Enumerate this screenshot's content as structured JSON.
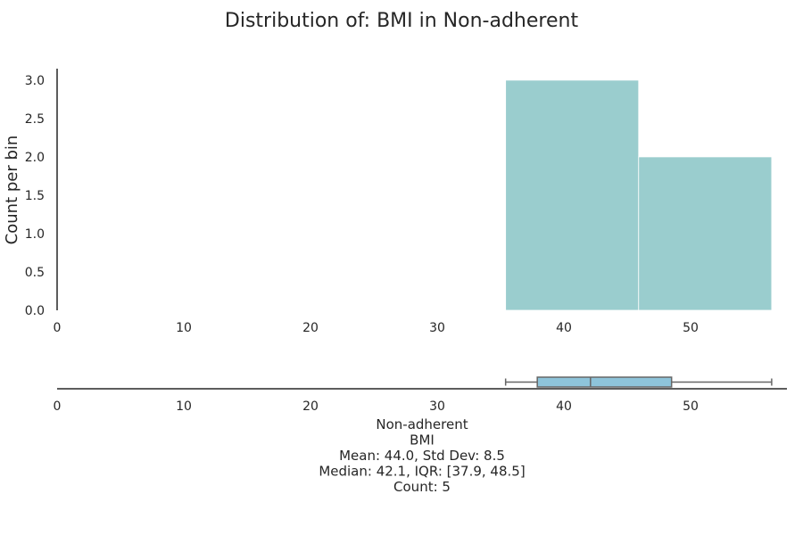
{
  "chart_data": {
    "type": "bar",
    "title": "Distribution of: BMI in Non-adherent",
    "ylabel": "Count per bin",
    "xlabel": "",
    "xlim": [
      0,
      57
    ],
    "ylim": [
      0,
      3.15
    ],
    "x_ticks": [
      "0",
      "10",
      "20",
      "30",
      "40",
      "50"
    ],
    "y_ticks": [
      "0.0",
      "0.5",
      "1.0",
      "1.5",
      "2.0",
      "2.5",
      "3.0"
    ],
    "bins": [
      {
        "start": 35.4,
        "end": 45.9,
        "count": 3
      },
      {
        "start": 45.9,
        "end": 56.4,
        "count": 2
      }
    ],
    "bar_color": "#9acdce",
    "grid": false,
    "boxplot": {
      "whisker_low": 35.4,
      "q1": 37.9,
      "median": 42.1,
      "q3": 48.5,
      "whisker_high": 56.4,
      "box_color": "#8ec4da",
      "line_color": "#666666"
    },
    "stats_text": [
      "Non-adherent",
      "BMI",
      "Mean: 44.0, Std Dev: 8.5",
      "Median: 42.1, IQR: [37.9, 48.5]",
      "Count: 5"
    ]
  }
}
